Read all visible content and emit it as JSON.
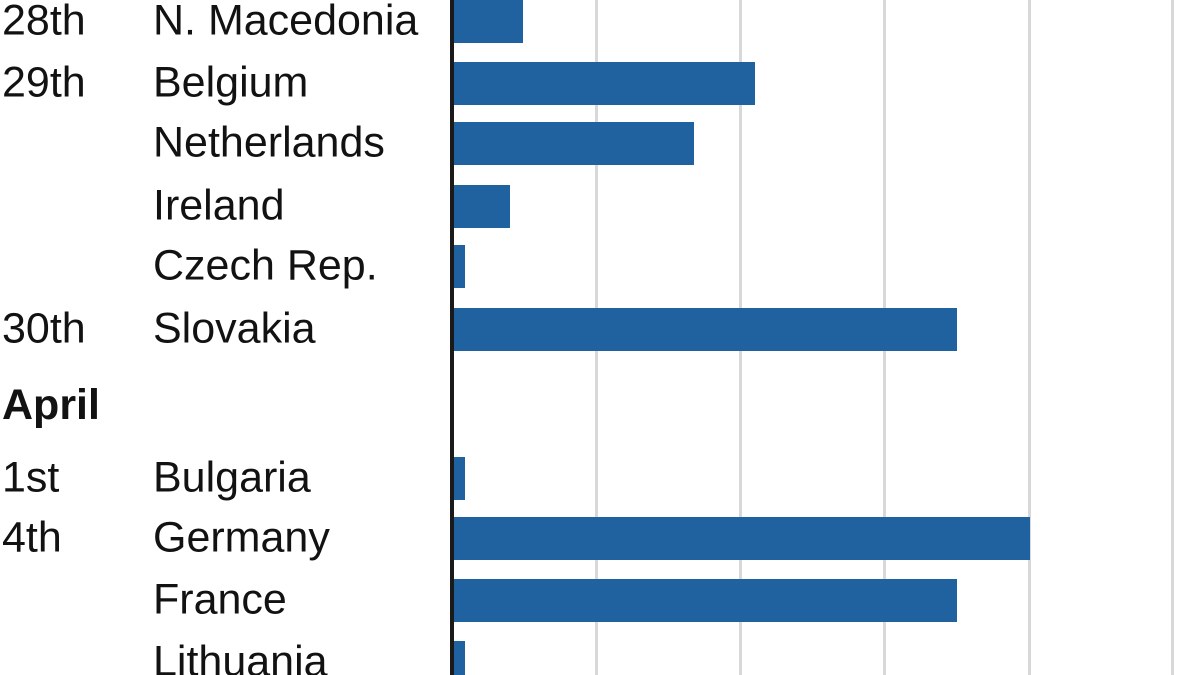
{
  "page": {
    "background": "#ffffff"
  },
  "chart_data": {
    "type": "bar",
    "orientation": "horizontal",
    "title": "",
    "axis": {
      "x_tick_labels_visible": false,
      "visible_gridlines": 5,
      "value_unit": "gridline units (axis tick labels cropped out of view)"
    },
    "section_header": {
      "label": "April"
    },
    "rows": [
      {
        "date": "28th",
        "country": "N. Macedonia",
        "value": 0.49
      },
      {
        "date": "29th",
        "country": "Belgium",
        "value": 2.1
      },
      {
        "date": "",
        "country": "Netherlands",
        "value": 1.68
      },
      {
        "date": "",
        "country": "Ireland",
        "value": 0.4
      },
      {
        "date": "",
        "country": "Czech Rep.",
        "value": 0.09
      },
      {
        "date": "30th",
        "country": "Slovakia",
        "value": 3.5
      },
      {
        "date": "1st",
        "country": "Bulgaria",
        "value": 0.09
      },
      {
        "date": "4th",
        "country": "Germany",
        "value": 4.01
      },
      {
        "date": "",
        "country": "France",
        "value": 3.5
      },
      {
        "date": "",
        "country": "Lithuania",
        "value": 0.09
      }
    ]
  },
  "colors": {
    "bar": "#20629f",
    "gridline": "#d8d8d8",
    "axis": "#1a1a1a",
    "text": "#121212"
  }
}
